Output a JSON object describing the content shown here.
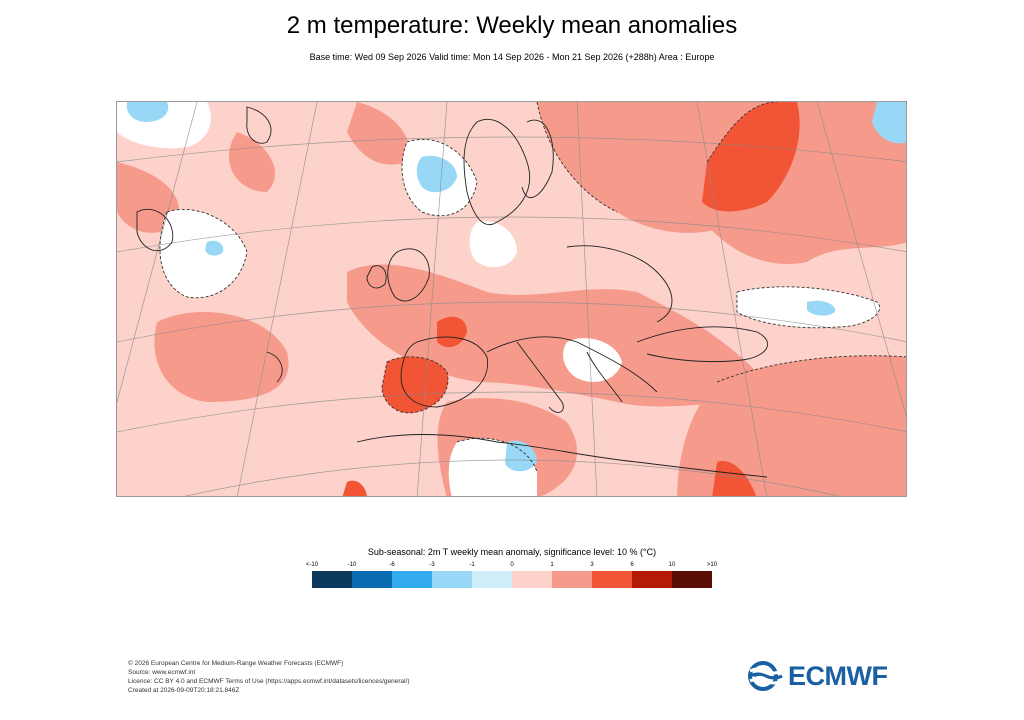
{
  "title": "2 m temperature: Weekly mean anomalies",
  "subtitle": "Base time: Wed 09 Sep 2026 Valid time: Mon 14 Sep 2026 - Mon 21 Sep 2026 (+288h) Area : Europe",
  "map": {
    "area": "Europe",
    "variable": "2 m temperature weekly mean anomaly",
    "units": "°C"
  },
  "legend": {
    "title": "Sub-seasonal: 2m T weekly mean anomaly, significance level: 10 % (°C)",
    "tick_labels": [
      "<-10",
      "-10",
      "-6",
      "-3",
      "-1",
      "0",
      "1",
      "3",
      "6",
      "10",
      ">10"
    ],
    "colors": [
      "#0b3a5c",
      "#0a6bb0",
      "#33acef",
      "#98d8f6",
      "#cfecfb",
      "#fcd2cb",
      "#f69b8c",
      "#f15535",
      "#b41b07",
      "#5a0d02"
    ]
  },
  "footer": {
    "lines": [
      "© 2026 European Centre for Medium-Range Weather Forecasts (ECMWF)",
      "Source: www.ecmwf.int",
      "Licence: CC BY 4.0 and ECMWF Terms of Use (https://apps.ecmwf.int/datasets/licences/general/)",
      "Created at 2026-09-09T20:18:21.846Z"
    ]
  },
  "logo": {
    "text": "ECMWF",
    "color": "#1a5fa3"
  }
}
